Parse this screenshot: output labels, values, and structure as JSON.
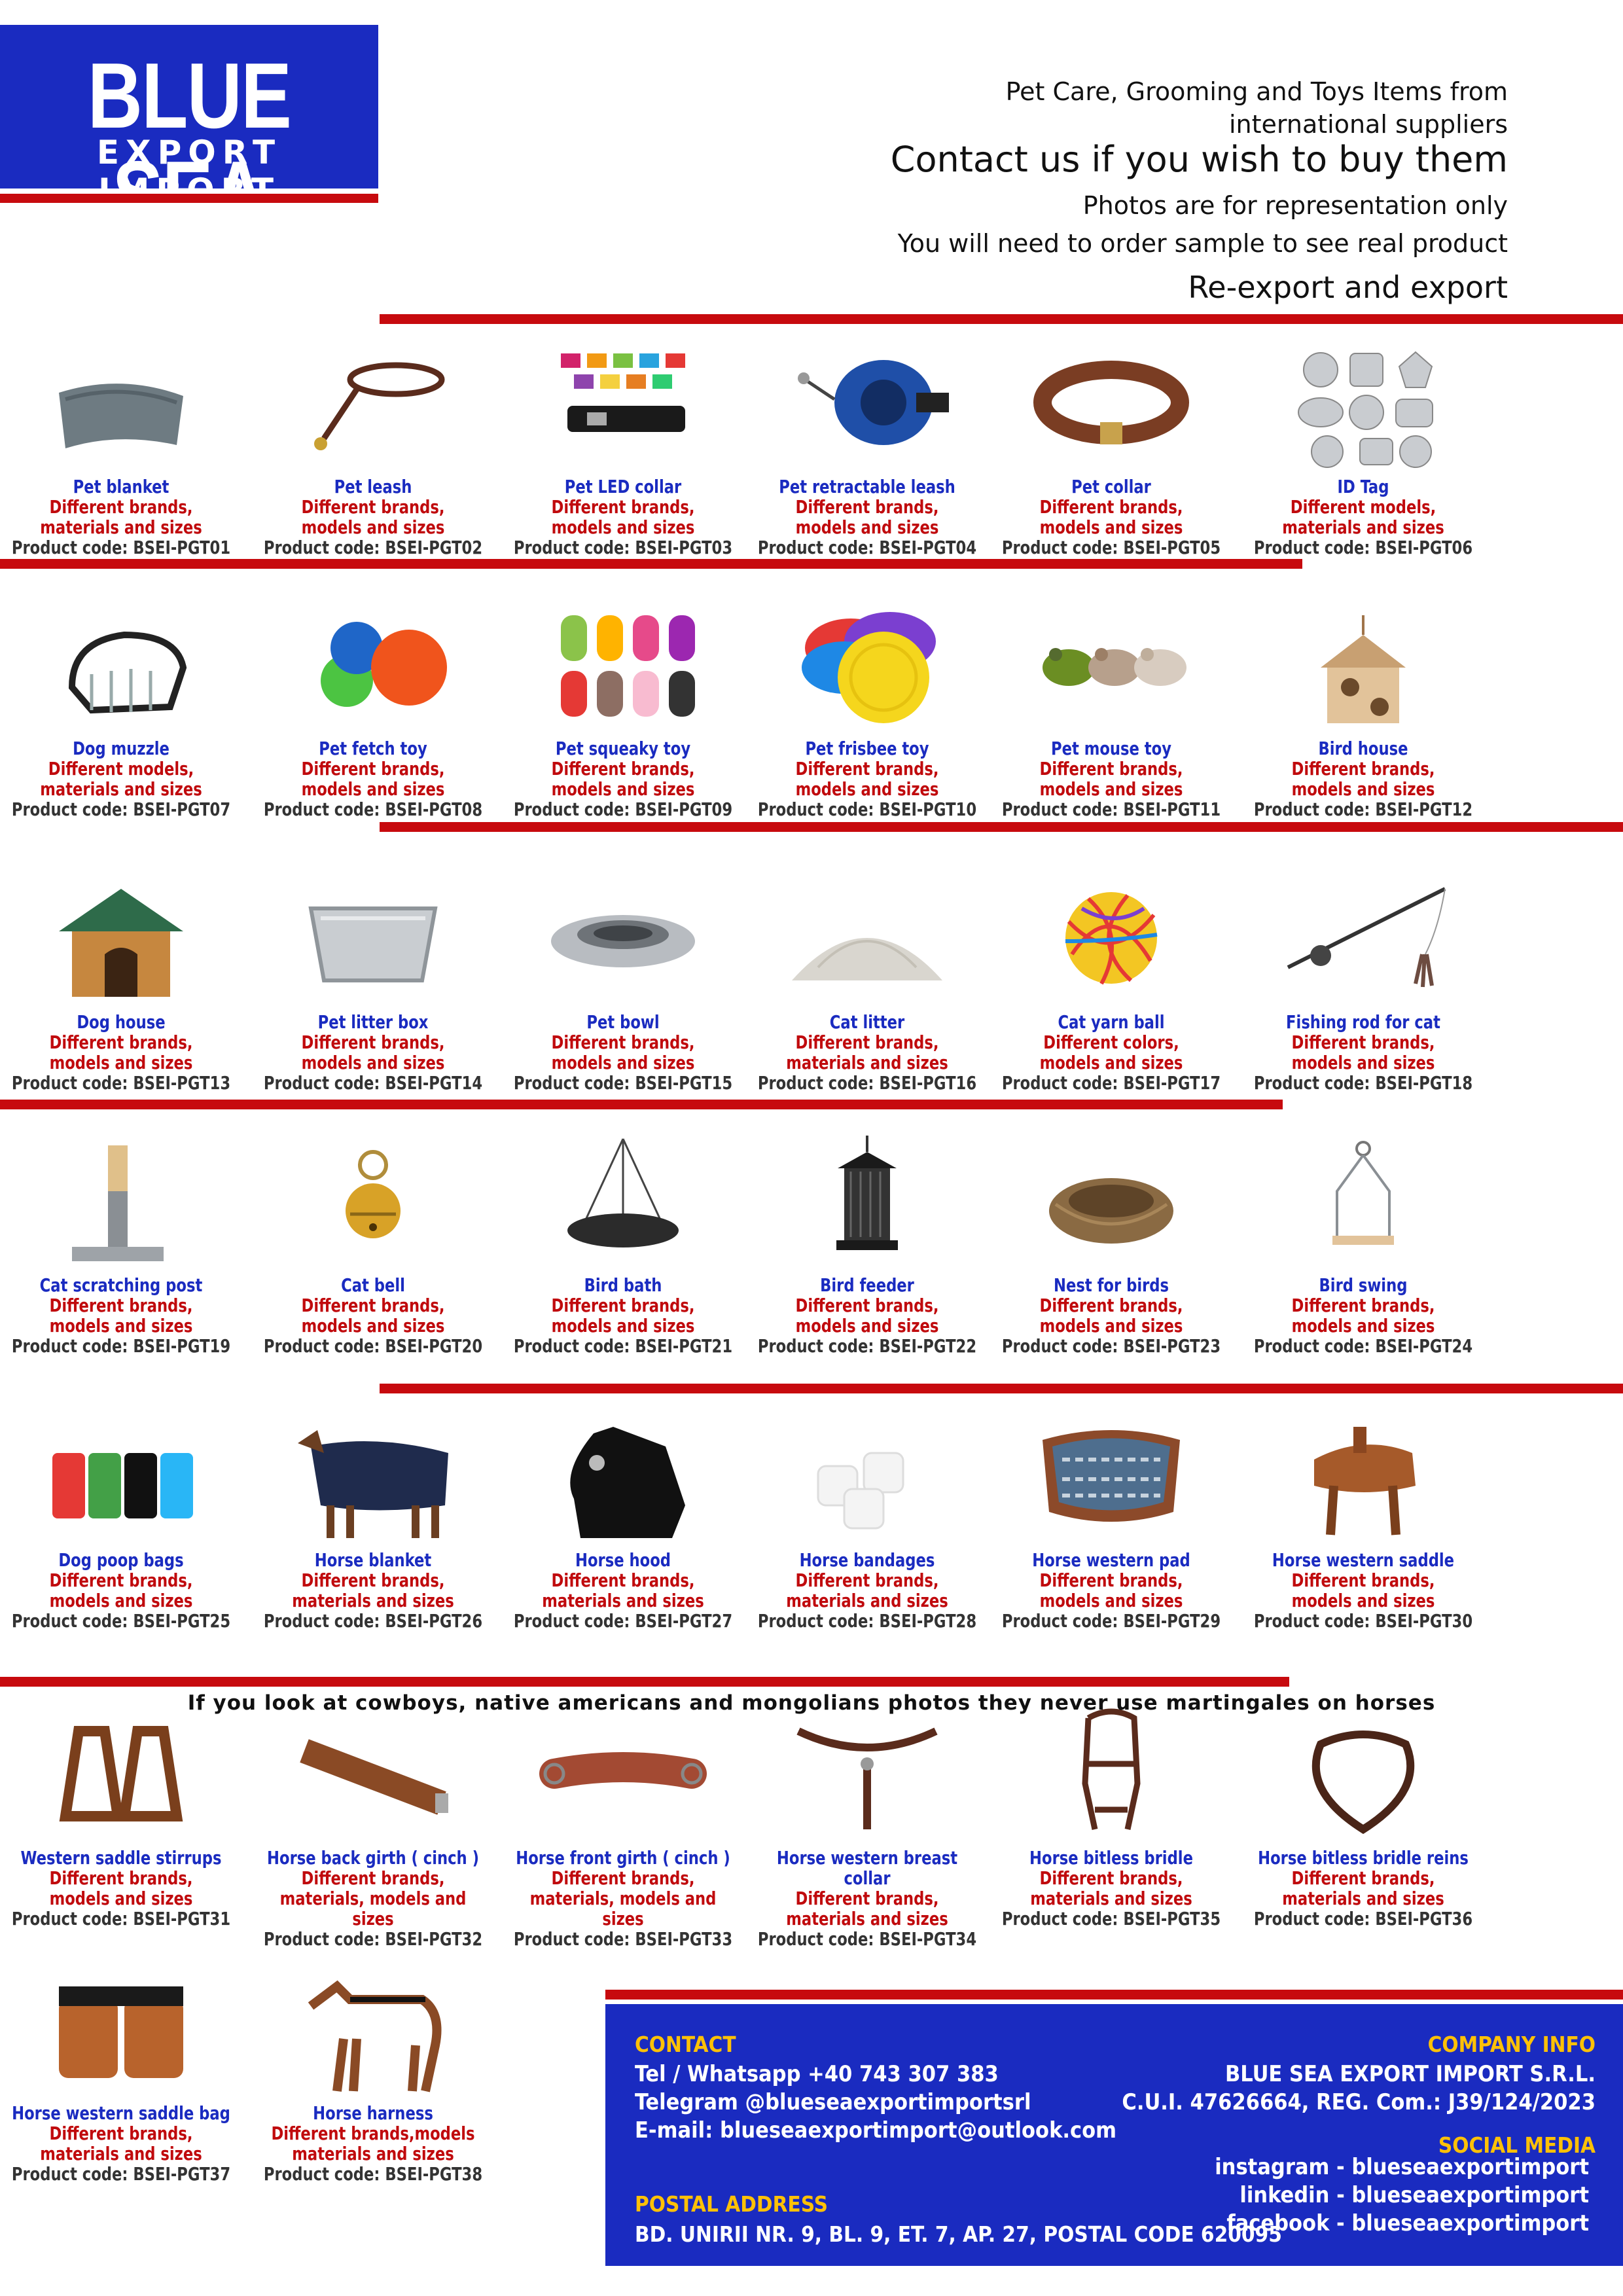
{
  "brand": {
    "name_line1": "BLUE SEA",
    "name_line2": "EXPORT IMPORT"
  },
  "intro": {
    "line1": "Pet Care, Grooming and Toys Items from",
    "line2": "international suppliers",
    "line3": "Contact us if you wish to buy them",
    "line4": "Photos are for representation only",
    "line5": "You will need to order sample to see real product",
    "line6": "Re-export and export"
  },
  "products": [
    {
      "name": "Pet blanket",
      "desc1": "Different brands,",
      "desc2": "materials and sizes",
      "code": "Product code: BSEI-PGT01",
      "icon": "blanket-icon"
    },
    {
      "name": "Pet leash",
      "desc1": "Different brands,",
      "desc2": "models and sizes",
      "code": "Product code: BSEI-PGT02",
      "icon": "leash-icon"
    },
    {
      "name": "Pet LED collar",
      "desc1": "Different brands,",
      "desc2": "models and sizes",
      "code": "Product code: BSEI-PGT03",
      "icon": "led-collar-icon"
    },
    {
      "name": "Pet retractable leash",
      "desc1": "Different brands,",
      "desc2": "models and sizes",
      "code": "Product code: BSEI-PGT04",
      "icon": "retractable-leash-icon"
    },
    {
      "name": "Pet collar",
      "desc1": "Different brands,",
      "desc2": "models and sizes",
      "code": "Product code: BSEI-PGT05",
      "icon": "collar-icon"
    },
    {
      "name": "ID Tag",
      "desc1": "Different models,",
      "desc2": "materials and sizes",
      "code": "Product code: BSEI-PGT06",
      "icon": "id-tag-icon"
    },
    {
      "name": "Dog muzzle",
      "desc1": "Different models,",
      "desc2": "materials and sizes",
      "code": "Product code: BSEI-PGT07",
      "icon": "muzzle-icon"
    },
    {
      "name": "Pet fetch toy",
      "desc1": "Different brands,",
      "desc2": "models and sizes",
      "code": "Product code: BSEI-PGT08",
      "icon": "fetch-ball-icon"
    },
    {
      "name": "Pet squeaky toy",
      "desc1": "Different brands,",
      "desc2": "models and sizes",
      "code": "Product code: BSEI-PGT09",
      "icon": "squeaky-toy-icon"
    },
    {
      "name": "Pet frisbee toy",
      "desc1": "Different brands,",
      "desc2": "models and sizes",
      "code": "Product code: BSEI-PGT10",
      "icon": "frisbee-icon"
    },
    {
      "name": "Pet mouse toy",
      "desc1": "Different brands,",
      "desc2": "models and sizes",
      "code": "Product code: BSEI-PGT11",
      "icon": "mouse-toy-icon"
    },
    {
      "name": "Bird house",
      "desc1": "Different brands,",
      "desc2": "models and sizes",
      "code": "Product code: BSEI-PGT12",
      "icon": "bird-house-icon"
    },
    {
      "name": "Dog house",
      "desc1": "Different brands,",
      "desc2": "models and sizes",
      "code": "Product code: BSEI-PGT13",
      "icon": "dog-house-icon"
    },
    {
      "name": "Pet litter box",
      "desc1": "Different brands,",
      "desc2": "models and sizes",
      "code": "Product code: BSEI-PGT14",
      "icon": "litter-box-icon"
    },
    {
      "name": "Pet bowl",
      "desc1": "Different brands,",
      "desc2": "models and sizes",
      "code": "Product code: BSEI-PGT15",
      "icon": "bowl-icon"
    },
    {
      "name": "Cat litter",
      "desc1": "Different brands,",
      "desc2": "materials and sizes",
      "code": "Product code: BSEI-PGT16",
      "icon": "cat-litter-icon"
    },
    {
      "name": "Cat yarn ball",
      "desc1": "Different colors,",
      "desc2": "models and sizes",
      "code": "Product code: BSEI-PGT17",
      "icon": "yarn-ball-icon"
    },
    {
      "name": "Fishing rod for cat",
      "desc1": "Different brands,",
      "desc2": "models and sizes",
      "code": "Product code: BSEI-PGT18",
      "icon": "fishing-rod-icon"
    },
    {
      "name": "Cat scratching post",
      "desc1": "Different brands,",
      "desc2": "models and sizes",
      "code": "Product code: BSEI-PGT19",
      "icon": "scratching-post-icon"
    },
    {
      "name": "Cat bell",
      "desc1": "Different brands,",
      "desc2": "models and sizes",
      "code": "Product code: BSEI-PGT20",
      "icon": "bell-icon"
    },
    {
      "name": "Bird bath",
      "desc1": "Different brands,",
      "desc2": "models and sizes",
      "code": "Product code: BSEI-PGT21",
      "icon": "bird-bath-icon"
    },
    {
      "name": "Bird feeder",
      "desc1": "Different brands,",
      "desc2": "models and sizes",
      "code": "Product code: BSEI-PGT22",
      "icon": "bird-feeder-icon"
    },
    {
      "name": "Nest for birds",
      "desc1": "Different brands,",
      "desc2": "models and sizes",
      "code": "Product code: BSEI-PGT23",
      "icon": "nest-icon"
    },
    {
      "name": "Bird swing",
      "desc1": "Different brands,",
      "desc2": "models and sizes",
      "code": "Product code: BSEI-PGT24",
      "icon": "bird-swing-icon"
    },
    {
      "name": "Dog poop bags",
      "desc1": "Different brands,",
      "desc2": "models and sizes",
      "code": "Product code: BSEI-PGT25",
      "icon": "poop-bags-icon"
    },
    {
      "name": "Horse blanket",
      "desc1": "Different brands,",
      "desc2": "materials and sizes",
      "code": "Product code: BSEI-PGT26",
      "icon": "horse-blanket-icon"
    },
    {
      "name": "Horse hood",
      "desc1": "Different brands,",
      "desc2": "materials and sizes",
      "code": "Product code: BSEI-PGT27",
      "icon": "horse-hood-icon"
    },
    {
      "name": "Horse bandages",
      "desc1": "Different brands,",
      "desc2": "materials and sizes",
      "code": "Product code: BSEI-PGT28",
      "icon": "bandages-icon"
    },
    {
      "name": "Horse western pad",
      "desc1": "Different brands,",
      "desc2": "models and sizes",
      "code": "Product code: BSEI-PGT29",
      "icon": "western-pad-icon"
    },
    {
      "name": "Horse western saddle",
      "desc1": "Different brands,",
      "desc2": "models and sizes",
      "code": "Product code: BSEI-PGT30",
      "icon": "saddle-icon"
    },
    {
      "name": "Western saddle stirrups",
      "desc1": "Different brands,",
      "desc2": "models and sizes",
      "code": "Product code: BSEI-PGT31",
      "icon": "stirrups-icon"
    },
    {
      "name": "Horse back girth ( cinch )",
      "desc1": "Different brands,",
      "desc2": "materials, models and sizes",
      "code": "Product code: BSEI-PGT32",
      "icon": "back-girth-icon"
    },
    {
      "name": "Horse front girth ( cinch )",
      "desc1": "Different brands,",
      "desc2": "materials, models and sizes",
      "code": "Product code: BSEI-PGT33",
      "icon": "front-girth-icon"
    },
    {
      "name": "Horse western breast collar",
      "desc1": "Different brands,",
      "desc2": "materials and sizes",
      "code": "Product code: BSEI-PGT34",
      "icon": "breast-collar-icon"
    },
    {
      "name": "Horse bitless bridle",
      "desc1": "Different brands,",
      "desc2": "materials and sizes",
      "code": "Product code: BSEI-PGT35",
      "icon": "bitless-bridle-icon"
    },
    {
      "name": "Horse bitless bridle reins",
      "desc1": "Different brands,",
      "desc2": "materials and sizes",
      "code": "Product code: BSEI-PGT36",
      "icon": "bridle-reins-icon"
    },
    {
      "name": "Horse western saddle bag",
      "desc1": "Different brands,",
      "desc2": "materials and sizes",
      "code": "Product code: BSEI-PGT37",
      "icon": "saddle-bag-icon"
    },
    {
      "name": "Horse harness",
      "desc1": "Different brands,models",
      "desc2": "materials and sizes",
      "code": "Product code: BSEI-PGT38",
      "icon": "harness-icon"
    }
  ],
  "note": "If you look at cowboys, native americans and mongolians photos they never use martingales on horses",
  "contact": {
    "heading": "CONTACT",
    "phone": "Tel / Whatsapp +40 743 307 383",
    "telegram": "Telegram @blueseaexportimportsrl",
    "email": "E-mail: blueseaexportimport@outlook.com"
  },
  "postal": {
    "heading": "POSTAL ADDRESS",
    "address": "BD. UNIRII NR. 9, BL. 9, ET. 7, AP. 27, POSTAL CODE 620095"
  },
  "company": {
    "heading": "COMPANY INFO",
    "name": "BLUE SEA EXPORT IMPORT S.R.L.",
    "registration": "C.U.I. 47626664, REG. Com.: J39/124/2023"
  },
  "social": {
    "instagram": "instagram - blueseaexportimport",
    "linkedin": "linkedin - blueseaexportimport",
    "heading": "SOCIAL MEDIA",
    "facebook": "facebook - blueseaexportimport"
  },
  "colors": {
    "brand_blue": "#1a2bc0",
    "accent_red": "#c70a0e",
    "label_red": "#c00a0d",
    "footer_heading": "#ffc107"
  }
}
